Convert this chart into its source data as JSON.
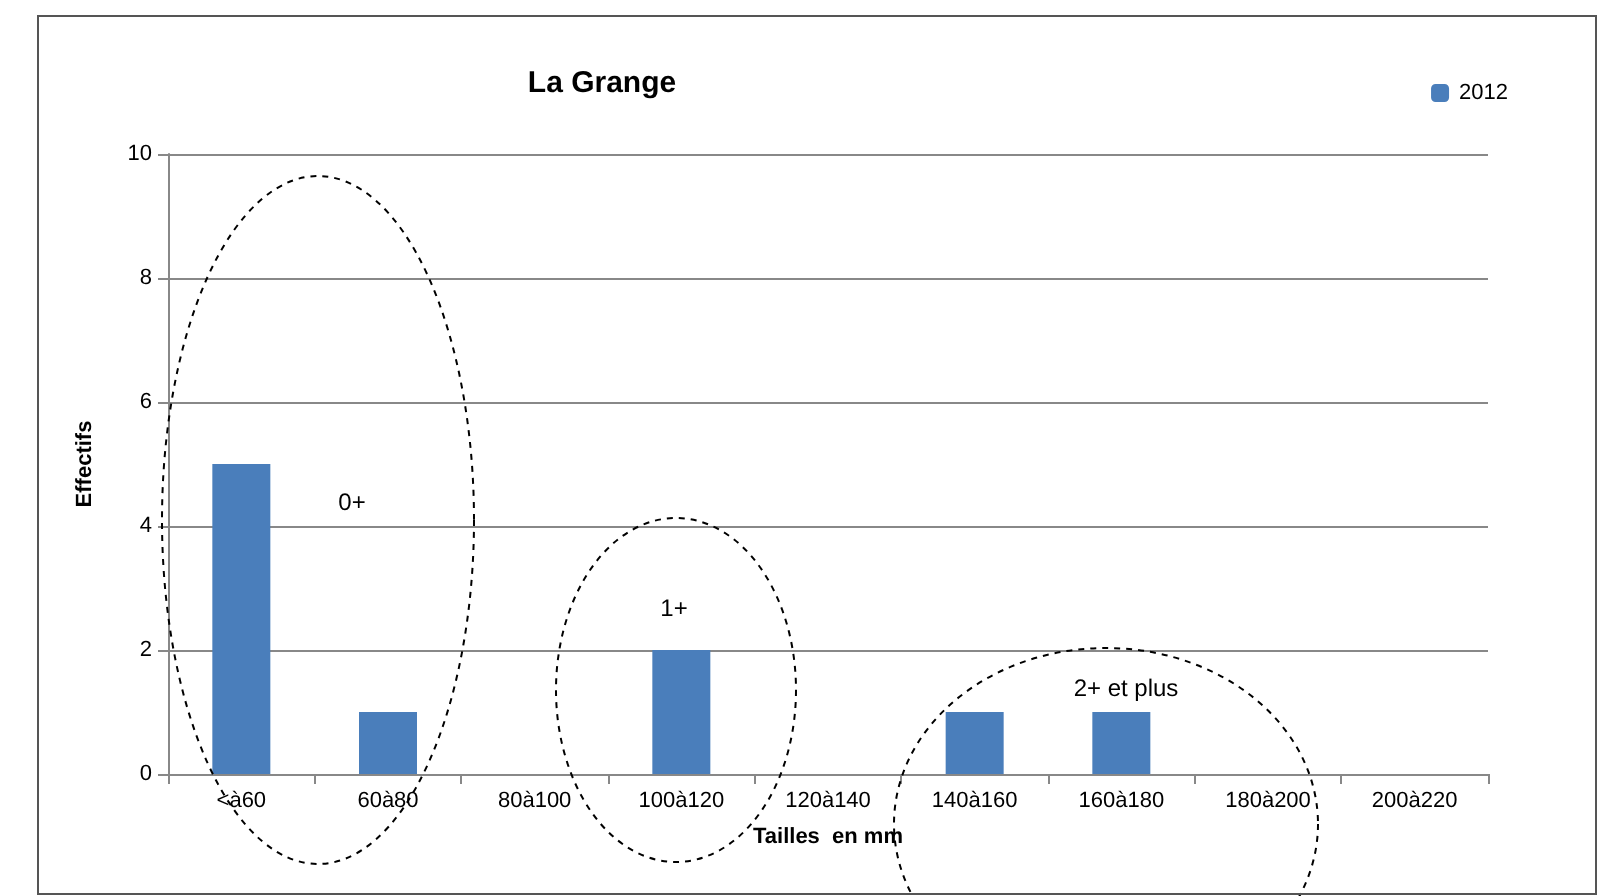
{
  "chart_data": {
    "type": "bar",
    "title": "La Grange",
    "xlabel": "Tailles  en mm",
    "ylabel": "Effectifs",
    "categories": [
      "<à60",
      "60à80",
      "80à100",
      "100à120",
      "120à140",
      "140à160",
      "160à180",
      "180à200",
      "200à220"
    ],
    "series": [
      {
        "name": "2012",
        "color": "#4a7ebb",
        "values": [
          5,
          1,
          0,
          2,
          0,
          1,
          1,
          0,
          0
        ]
      }
    ],
    "ylim": [
      0,
      10
    ],
    "yticks": [
      0,
      2,
      4,
      6,
      8,
      10
    ],
    "grid": "y",
    "legend": "top right",
    "annotations": [
      "0+",
      "1+",
      "2+ et plus"
    ]
  }
}
